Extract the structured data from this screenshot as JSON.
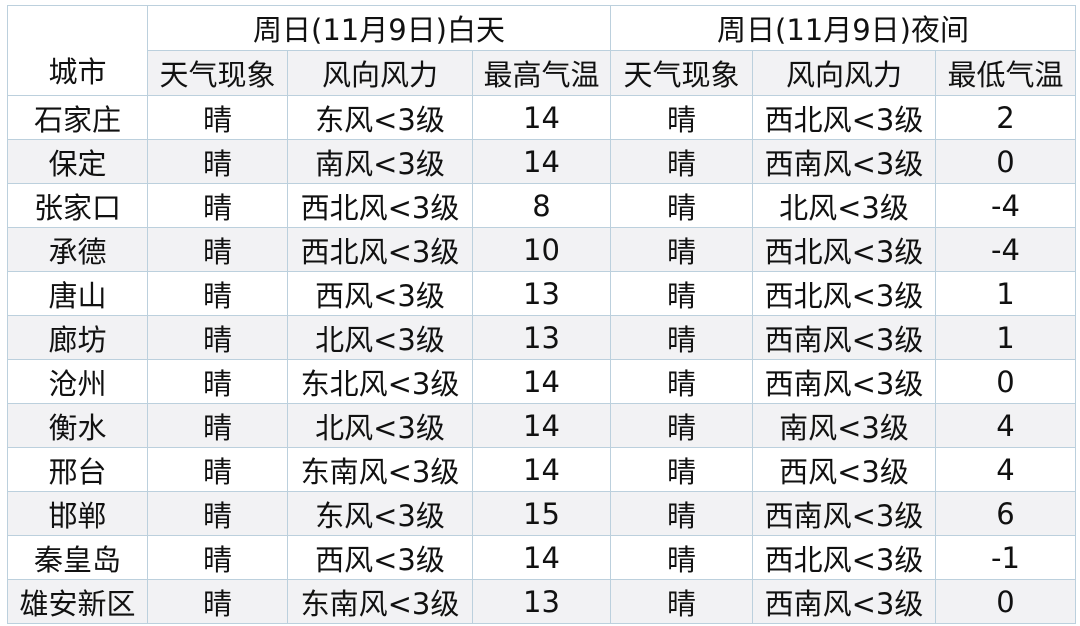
{
  "header": {
    "city": "城市",
    "day_group": "周日(11月9日)白天",
    "night_group": "周日(11月9日)夜间",
    "columns": [
      "天气现象",
      "风向风力",
      "最高气温",
      "天气现象",
      "风向风力",
      "最低气温"
    ]
  },
  "rows": [
    [
      "石家庄",
      "晴",
      "东风<3级",
      "14",
      "晴",
      "西北风<3级",
      "2"
    ],
    [
      "保定",
      "晴",
      "南风<3级",
      "14",
      "晴",
      "西南风<3级",
      "0"
    ],
    [
      "张家口",
      "晴",
      "西北风<3级",
      "8",
      "晴",
      "北风<3级",
      "-4"
    ],
    [
      "承德",
      "晴",
      "西北风<3级",
      "10",
      "晴",
      "西北风<3级",
      "-4"
    ],
    [
      "唐山",
      "晴",
      "西风<3级",
      "13",
      "晴",
      "西北风<3级",
      "1"
    ],
    [
      "廊坊",
      "晴",
      "北风<3级",
      "13",
      "晴",
      "西南风<3级",
      "1"
    ],
    [
      "沧州",
      "晴",
      "东北风<3级",
      "14",
      "晴",
      "西南风<3级",
      "0"
    ],
    [
      "衡水",
      "晴",
      "北风<3级",
      "14",
      "晴",
      "南风<3级",
      "4"
    ],
    [
      "邢台",
      "晴",
      "东南风<3级",
      "14",
      "晴",
      "西风<3级",
      "4"
    ],
    [
      "邯郸",
      "晴",
      "东风<3级",
      "15",
      "晴",
      "西南风<3级",
      "6"
    ],
    [
      "秦皇岛",
      "晴",
      "西风<3级",
      "14",
      "晴",
      "西北风<3级",
      "-1"
    ],
    [
      "雄安新区",
      "晴",
      "东南风<3级",
      "13",
      "晴",
      "西南风<3级",
      "0"
    ]
  ]
}
